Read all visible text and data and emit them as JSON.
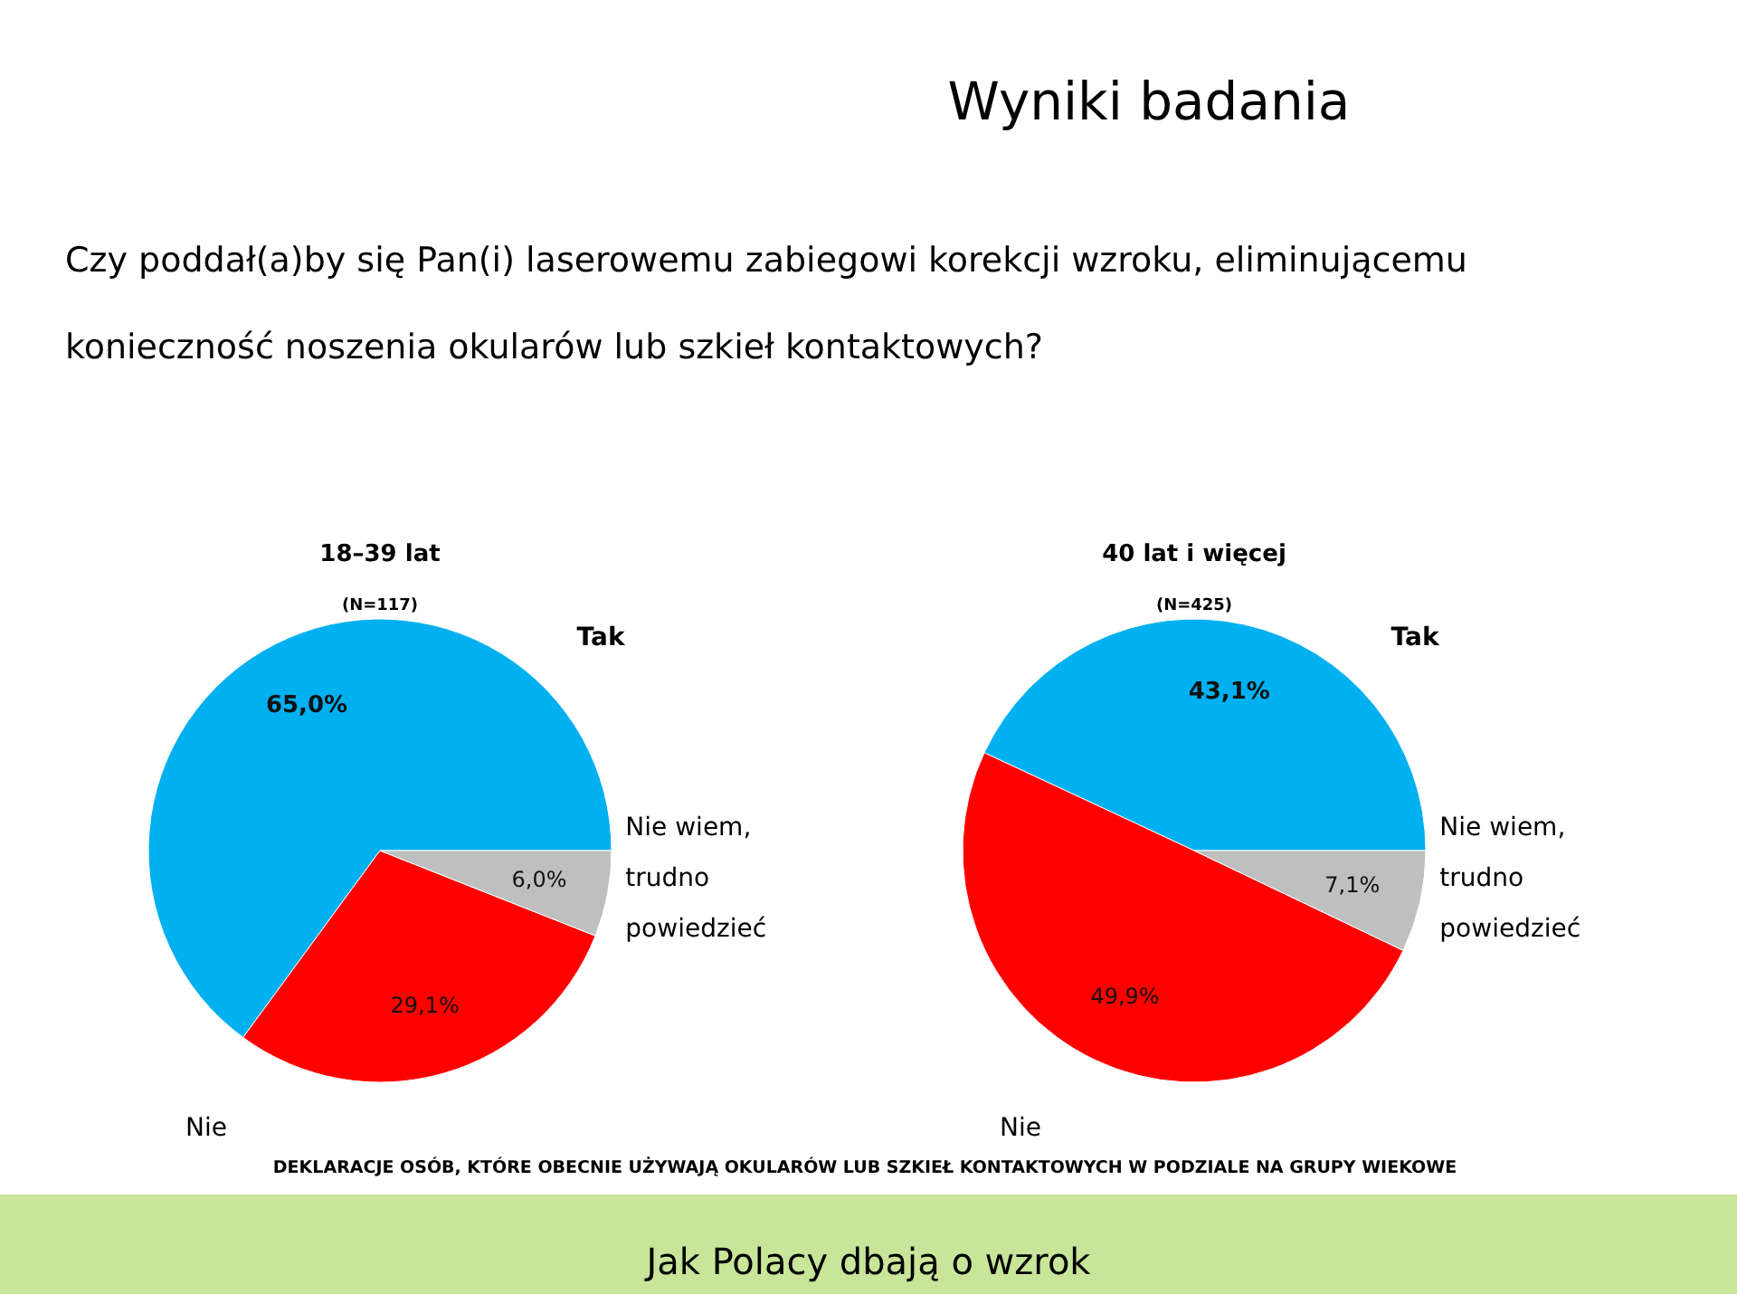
{
  "chart_data": [
    {
      "type": "pie",
      "title": "18–39 lat",
      "subtitle": "(N=117)",
      "categories": [
        "Tak",
        "Nie",
        "Nie wiem, trudno powiedzieć"
      ],
      "values": [
        65.0,
        29.1,
        6.0
      ],
      "value_labels": [
        "65,0%",
        "29,1%",
        "6,0%"
      ],
      "colors": [
        "#00b0f0",
        "#ff0000",
        "#bfbfbf"
      ],
      "legend": false,
      "annotations": [
        "Wyniki badania",
        "Czy poddał(a)by się Pan(i) laserowemu zabiegowi korekcji wzroku, eliminującemu konieczność noszenia okularów lub szkieł kontaktowych?",
        "DEKLARACJE OSÓB, KTÓRE OBECNIE UŻYWAJĄ OKULARÓW LUB SZKIEŁ KONTAKTOWYCH W PODZIALE NA GRUPY WIEKOWE",
        "Jak Polacy dbają o wzrok"
      ]
    },
    {
      "type": "pie",
      "title": "40 lat i więcej",
      "subtitle": "(N=425)",
      "categories": [
        "Tak",
        "Nie",
        "Nie wiem, trudno powiedzieć"
      ],
      "values": [
        43.1,
        49.9,
        7.1
      ],
      "value_labels": [
        "43,1%",
        "49,9%",
        "7,1%"
      ],
      "colors": [
        "#00b0f0",
        "#ff0000",
        "#bfbfbf"
      ],
      "legend": false
    }
  ]
}
